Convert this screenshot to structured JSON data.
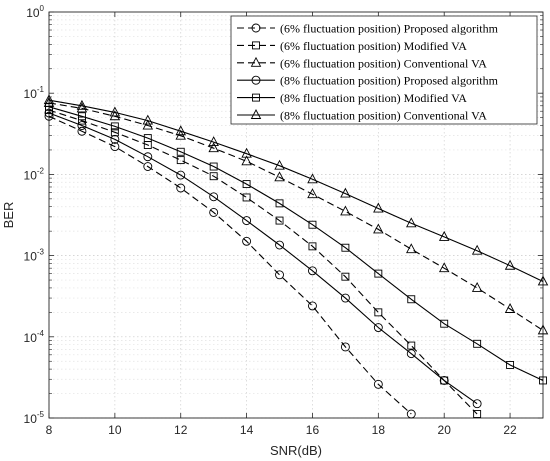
{
  "chart_data": {
    "type": "line",
    "xlabel": "SNR(dB)",
    "ylabel": "BER",
    "xlim": [
      8,
      23
    ],
    "ylim": [
      1e-05,
      1
    ],
    "yscale": "log",
    "grid": true,
    "legend_position": "top-right",
    "xticks": [
      8,
      10,
      12,
      14,
      16,
      18,
      20,
      22
    ],
    "ytick_mantissa": "10",
    "ytick_exponents": [
      "0",
      "-1",
      "-2",
      "-3",
      "-4",
      "-5"
    ],
    "series": [
      {
        "name": "(6% fluctuation position) Proposed algorithm",
        "line": "dashed",
        "marker": "circle",
        "x": [
          8,
          9,
          10,
          11,
          12,
          13,
          14,
          15,
          16,
          17,
          18,
          19
        ],
        "y": [
          0.052,
          0.034,
          0.022,
          0.0125,
          0.0068,
          0.0034,
          0.0015,
          0.00058,
          0.00024,
          7.5e-05,
          2.6e-05,
          1.12e-05
        ]
      },
      {
        "name": "(6% fluctuation position) Modified VA",
        "line": "dashed",
        "marker": "square",
        "x": [
          8,
          9,
          10,
          11,
          12,
          13,
          14,
          15,
          16,
          17,
          18,
          19,
          20,
          21
        ],
        "y": [
          0.062,
          0.046,
          0.033,
          0.023,
          0.015,
          0.0095,
          0.0052,
          0.0027,
          0.0013,
          0.00055,
          0.0002,
          7.8e-05,
          2.9e-05,
          1.12e-05
        ]
      },
      {
        "name": "(6% fluctuation position) Conventional VA",
        "line": "dashed",
        "marker": "triangle",
        "x": [
          8,
          9,
          10,
          11,
          12,
          13,
          14,
          15,
          16,
          17,
          18,
          19,
          20,
          21,
          22,
          23
        ],
        "y": [
          0.076,
          0.065,
          0.052,
          0.04,
          0.03,
          0.021,
          0.0145,
          0.0092,
          0.0057,
          0.0035,
          0.0021,
          0.0012,
          0.0007,
          0.0004,
          0.00022,
          0.00012
        ]
      },
      {
        "name": "(8% fluctuation position) Proposed algorithm",
        "line": "solid",
        "marker": "circle",
        "x": [
          8,
          9,
          10,
          11,
          12,
          13,
          14,
          15,
          16,
          17,
          18,
          19,
          20,
          21
        ],
        "y": [
          0.057,
          0.04,
          0.027,
          0.0165,
          0.0098,
          0.0053,
          0.0027,
          0.00135,
          0.00065,
          0.0003,
          0.00013,
          6.2e-05,
          2.9e-05,
          1.5e-05
        ]
      },
      {
        "name": "(8% fluctuation position) Modified VA",
        "line": "solid",
        "marker": "square",
        "x": [
          8,
          9,
          10,
          11,
          12,
          13,
          14,
          15,
          16,
          17,
          18,
          19,
          20,
          21,
          22,
          23
        ],
        "y": [
          0.068,
          0.052,
          0.039,
          0.028,
          0.019,
          0.0125,
          0.0076,
          0.0044,
          0.0024,
          0.00125,
          0.0006,
          0.00029,
          0.000145,
          8.2e-05,
          4.5e-05,
          2.9e-05
        ]
      },
      {
        "name": "(8% fluctuation position) Conventional VA",
        "line": "solid",
        "marker": "triangle",
        "x": [
          8,
          9,
          10,
          11,
          12,
          13,
          14,
          15,
          16,
          17,
          18,
          19,
          20,
          21,
          22,
          23
        ],
        "y": [
          0.082,
          0.07,
          0.058,
          0.046,
          0.034,
          0.025,
          0.018,
          0.0128,
          0.0087,
          0.0058,
          0.0038,
          0.0025,
          0.0017,
          0.00115,
          0.00075,
          0.00048
        ]
      }
    ]
  }
}
